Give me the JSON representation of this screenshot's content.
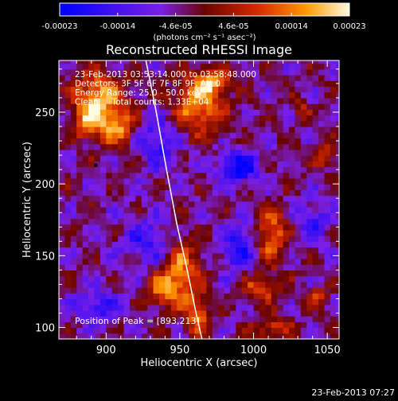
{
  "chart_data": {
    "type": "heatmap",
    "title": "Reconstructed RHESSI Image",
    "xlabel": "Heliocentric X (arcsec)",
    "ylabel": "Heliocentric Y (arcsec)",
    "xlim": [
      868,
      1058
    ],
    "ylim": [
      92,
      286
    ],
    "xticks": [
      900,
      950,
      1000,
      1050
    ],
    "yticks": [
      100,
      150,
      200,
      250
    ],
    "colorbar": {
      "ticks": [
        "-0.00023",
        "-0.00014",
        "-4.6e-05",
        "4.6e-05",
        "0.00014",
        "0.00023"
      ],
      "unit_label": "(photons cm⁻² s⁻¹ asec⁻²)",
      "range": [
        -0.00023,
        0.00023
      ],
      "colors": [
        "#0000ff",
        "#7a1fe6",
        "#7a0a00",
        "#c81e00",
        "#ff8c00",
        "#fff6c0"
      ]
    },
    "annotations": [
      "23-Feb-2013 03:53:14.000 to 03:58:48.000",
      "Detectors: 3F 5F 6F 7F 8F 9F, Att 0",
      "Energy Range: 25.0 - 50.0 keV",
      "Clean     Total counts: 1.33E+04"
    ],
    "peak_label": "Position of Peak = [893,213]",
    "peak": [
      893,
      213
    ],
    "limb_curve": [
      [
        927,
        286
      ],
      [
        934,
        250
      ],
      [
        941,
        210
      ],
      [
        948,
        172
      ],
      [
        955,
        140
      ],
      [
        961,
        110
      ],
      [
        965,
        92
      ]
    ],
    "blobs": [
      {
        "x": 895,
        "y": 262,
        "amp": 0.000215,
        "sx": 12,
        "sy": 11
      },
      {
        "x": 907,
        "y": 240,
        "amp": 0.000185,
        "sx": 9,
        "sy": 9
      },
      {
        "x": 888,
        "y": 243,
        "amp": 0.00016,
        "sx": 7,
        "sy": 9
      },
      {
        "x": 963,
        "y": 255,
        "amp": 0.0002,
        "sx": 12,
        "sy": 14
      },
      {
        "x": 972,
        "y": 272,
        "amp": 0.00017,
        "sx": 8,
        "sy": 6
      },
      {
        "x": 950,
        "y": 140,
        "amp": 0.000185,
        "sx": 9,
        "sy": 16
      },
      {
        "x": 938,
        "y": 126,
        "amp": 0.00015,
        "sx": 7,
        "sy": 8
      },
      {
        "x": 962,
        "y": 110,
        "amp": 0.00017,
        "sx": 6,
        "sy": 10
      },
      {
        "x": 1012,
        "y": 165,
        "amp": 0.000185,
        "sx": 7,
        "sy": 13
      },
      {
        "x": 1005,
        "y": 128,
        "amp": 0.00015,
        "sx": 8,
        "sy": 7
      },
      {
        "x": 1012,
        "y": 100,
        "amp": 0.00013,
        "sx": 8,
        "sy": 6
      },
      {
        "x": 1049,
        "y": 220,
        "amp": 0.00011,
        "sx": 5,
        "sy": 6
      },
      {
        "x": 1032,
        "y": 252,
        "amp": 0.00011,
        "sx": 4,
        "sy": 4
      },
      {
        "x": 1043,
        "y": 122,
        "amp": 0.0001,
        "sx": 5,
        "sy": 5
      },
      {
        "x": 990,
        "y": 212,
        "amp": -0.00019,
        "sx": 10,
        "sy": 8
      },
      {
        "x": 935,
        "y": 230,
        "amp": -0.00013,
        "sx": 9,
        "sy": 12
      },
      {
        "x": 930,
        "y": 160,
        "amp": -0.00012,
        "sx": 12,
        "sy": 12
      },
      {
        "x": 990,
        "y": 155,
        "amp": -0.00014,
        "sx": 8,
        "sy": 12
      },
      {
        "x": 895,
        "y": 115,
        "amp": -0.00012,
        "sx": 10,
        "sy": 8
      },
      {
        "x": 1040,
        "y": 175,
        "amp": -0.00011,
        "sx": 8,
        "sy": 10
      }
    ]
  },
  "timestamp": "23-Feb-2013 07:27"
}
